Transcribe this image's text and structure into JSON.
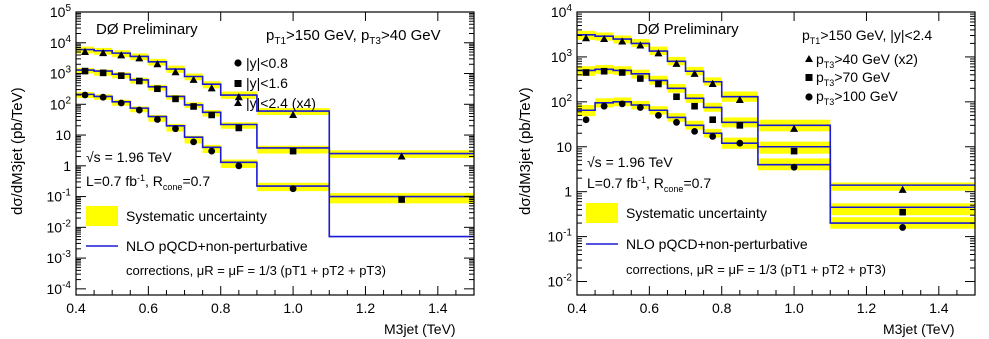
{
  "colors": {
    "nlo_line": "#1a1ad6",
    "systematic_band": "#ffff00",
    "frame": "#000000"
  },
  "chart_data": [
    {
      "type": "line",
      "panel": "left",
      "title": "DØ Preliminary",
      "cut_label": {
        "pt1": "150",
        "pt3": "40"
      },
      "sqrt_s": "1.96",
      "lumi": "0.7",
      "rcone": "0.7",
      "xlabel": "M3jet (TeV)",
      "ylabel": "dσ/dM3jet (pb/TeV)",
      "xlim": [
        0.4,
        1.5
      ],
      "ylim_log10": [
        -4.2,
        5
      ],
      "log_y": true,
      "x_ticks": [
        "0.4",
        "0.6",
        "0.8",
        "1.0",
        "1.2",
        "1.4"
      ],
      "x_tick_values": [
        0.4,
        0.6,
        0.8,
        1.0,
        1.2,
        1.4
      ],
      "y_ticks": [
        -4,
        -3,
        -2,
        -1,
        0,
        1,
        2,
        3,
        4,
        5
      ],
      "legend_systematic": "Systematic uncertainty",
      "legend_nlo_line1": "NLO pQCD+non-perturbative",
      "legend_nlo_line2": "corrections, μR = μF = 1/3 (pT1 + pT2 + pT3)",
      "bin_edges": [
        0.4,
        0.45,
        0.5,
        0.55,
        0.6,
        0.65,
        0.7,
        0.75,
        0.8,
        0.9,
        1.1,
        1.5
      ],
      "series": [
        {
          "name": "|y|<0.8",
          "marker": "circle",
          "x": [
            0.425,
            0.475,
            0.525,
            0.575,
            0.625,
            0.675,
            0.725,
            0.775,
            0.85,
            1.0
          ],
          "y": [
            200,
            170,
            110,
            65,
            32,
            16,
            6,
            3,
            1,
            0.18
          ],
          "nlo": [
            210,
            180,
            120,
            75,
            40,
            20,
            8.5,
            4,
            1.3,
            0.22
          ],
          "sys_lo": [
            160,
            140,
            90,
            55,
            27,
            13,
            5.3,
            2.6,
            0.85,
            0.15
          ],
          "sys_hi": [
            250,
            210,
            140,
            85,
            45,
            23,
            9.5,
            4.8,
            1.6,
            0.28
          ]
        },
        {
          "name": "|y|<1.6",
          "marker": "square",
          "x": [
            0.425,
            0.475,
            0.525,
            0.575,
            0.625,
            0.675,
            0.725,
            0.775,
            0.85,
            1.0,
            1.3
          ],
          "y": [
            1200,
            1050,
            850,
            570,
            320,
            150,
            85,
            45,
            17,
            3,
            0.08
          ],
          "nlo": [
            1300,
            1200,
            950,
            620,
            370,
            180,
            95,
            55,
            22,
            3.8,
            0.1
          ],
          "sys_lo": [
            1000,
            850,
            700,
            470,
            280,
            140,
            75,
            40,
            16,
            2.5,
            0.06
          ],
          "sys_hi": [
            1500,
            1350,
            1100,
            730,
            430,
            200,
            115,
            65,
            26,
            4.5,
            0.13
          ]
        },
        {
          "name": "|y|<2.4 (x4)",
          "marker": "triangle",
          "x": [
            0.425,
            0.475,
            0.525,
            0.575,
            0.625,
            0.675,
            0.725,
            0.775,
            0.85,
            1.0,
            1.3
          ],
          "y": [
            5000,
            4600,
            3900,
            3100,
            2000,
            1100,
            620,
            330,
            170,
            45,
            2
          ],
          "nlo": [
            6000,
            5500,
            4600,
            3600,
            2400,
            1400,
            800,
            450,
            200,
            60,
            2.5
          ],
          "sys_lo": [
            4500,
            4100,
            3400,
            2700,
            1800,
            1050,
            600,
            330,
            150,
            45,
            1.8
          ],
          "sys_hi": [
            7500,
            6800,
            5700,
            4500,
            3000,
            1800,
            1000,
            560,
            260,
            75,
            3.2
          ]
        }
      ],
      "nlo_tail": [
        {
          "series": "|y|<1.6",
          "value": 0.005
        }
      ]
    },
    {
      "type": "line",
      "panel": "right",
      "title": "DØ Preliminary",
      "cut_label": {
        "pt1": "150",
        "y": "2.4"
      },
      "sqrt_s": "1.96",
      "lumi": "0.7",
      "rcone": "0.7",
      "xlabel": "M3jet (TeV)",
      "ylabel": "dσ/dM3jet (pb/TeV)",
      "xlim": [
        0.4,
        1.5
      ],
      "ylim_log10": [
        -2.3,
        4
      ],
      "log_y": true,
      "x_ticks": [
        "0.4",
        "0.6",
        "0.8",
        "1.0",
        "1.2",
        "1.4"
      ],
      "x_tick_values": [
        0.4,
        0.6,
        0.8,
        1.0,
        1.2,
        1.4
      ],
      "y_ticks": [
        -2,
        -1,
        0,
        1,
        2,
        3,
        4
      ],
      "legend_systematic": "Systematic uncertainty",
      "legend_nlo_line1": "NLO pQCD+non-perturbative",
      "legend_nlo_line2": "corrections, μR = μF = 1/3 (pT1 + pT2 + pT3)",
      "bin_edges": [
        0.4,
        0.45,
        0.5,
        0.55,
        0.6,
        0.65,
        0.7,
        0.75,
        0.8,
        0.9,
        1.1,
        1.5
      ],
      "series": [
        {
          "name": "pT3>40 GeV (x2)",
          "marker": "triangle",
          "x": [
            0.425,
            0.475,
            0.525,
            0.575,
            0.625,
            0.675,
            0.725,
            0.775,
            0.85,
            1.0,
            1.3
          ],
          "y": [
            2600,
            2500,
            2200,
            1800,
            1200,
            700,
            420,
            250,
            110,
            25,
            1.1
          ],
          "nlo": [
            3100,
            2900,
            2500,
            2000,
            1350,
            800,
            480,
            280,
            130,
            30,
            1.4
          ],
          "sys_lo": [
            2400,
            2300,
            2000,
            1650,
            1100,
            650,
            390,
            230,
            100,
            22,
            1.05
          ],
          "sys_hi": [
            3800,
            3500,
            3000,
            2500,
            1700,
            1000,
            600,
            350,
            170,
            40,
            1.6
          ]
        },
        {
          "name": "pT3>70 GeV",
          "marker": "square",
          "x": [
            0.425,
            0.475,
            0.525,
            0.575,
            0.625,
            0.675,
            0.725,
            0.775,
            0.85,
            1.0,
            1.3
          ],
          "y": [
            450,
            480,
            450,
            330,
            250,
            130,
            80,
            40,
            30,
            8,
            0.35
          ],
          "nlo": [
            500,
            530,
            500,
            420,
            300,
            200,
            120,
            75,
            35,
            10,
            0.45
          ],
          "sys_lo": [
            380,
            420,
            400,
            330,
            240,
            160,
            95,
            60,
            27,
            7,
            0.3
          ],
          "sys_hi": [
            620,
            660,
            620,
            520,
            380,
            250,
            150,
            95,
            45,
            13,
            0.55
          ]
        },
        {
          "name": "pT3>100 GeV",
          "marker": "circle",
          "x": [
            0.425,
            0.475,
            0.525,
            0.575,
            0.625,
            0.675,
            0.725,
            0.775,
            0.85,
            1.0,
            1.3
          ],
          "y": [
            40,
            80,
            90,
            75,
            50,
            35,
            22,
            17,
            12,
            3.5,
            0.16
          ],
          "nlo": [
            65,
            95,
            100,
            85,
            65,
            45,
            30,
            20,
            12,
            4,
            0.2
          ],
          "sys_lo": [
            48,
            75,
            80,
            68,
            52,
            36,
            24,
            16,
            9,
            3,
            0.15
          ],
          "sys_hi": [
            85,
            120,
            125,
            105,
            80,
            56,
            38,
            25,
            16,
            5.5,
            0.27
          ]
        }
      ]
    }
  ]
}
